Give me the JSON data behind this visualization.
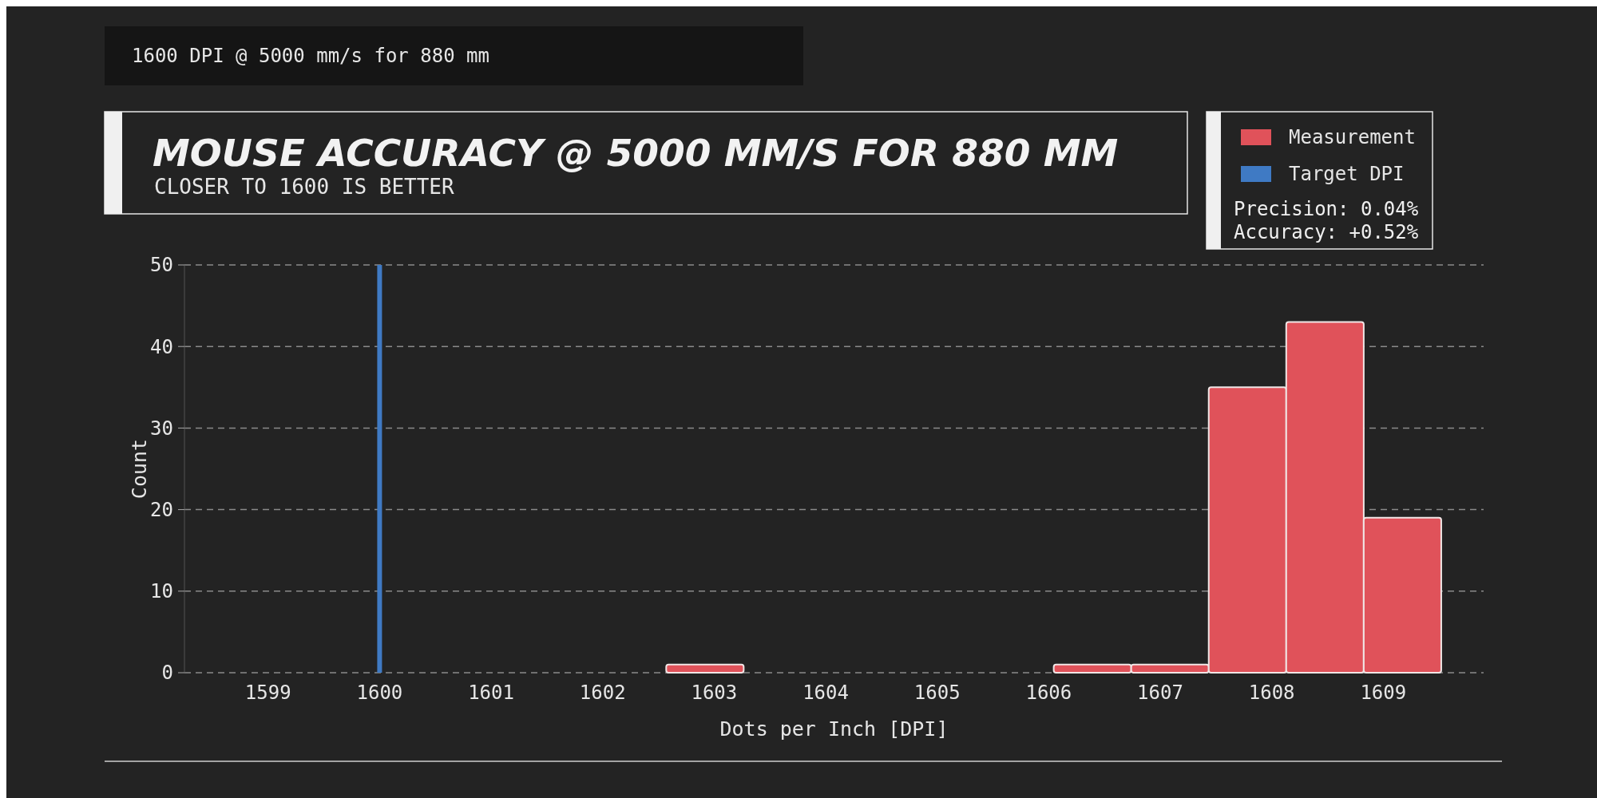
{
  "chart_data": {
    "type": "histogram",
    "title": "MOUSE ACCURACY @ 5000 MM/S FOR 880 MM",
    "subtitle": "CLOSER TO 1600 IS BETTER",
    "xlabel": "Dots per Inch [DPI]",
    "ylabel": "Count",
    "bins": [
      1602.57,
      1603.265,
      1603.96,
      1604.655,
      1605.35,
      1606.045,
      1606.74,
      1607.435,
      1608.13,
      1608.825,
      1609.52
    ],
    "series": [
      {
        "name": "Measurement",
        "color": "#e0525a",
        "values": [
          1,
          0,
          0,
          0,
          0,
          1,
          1,
          35,
          43,
          19
        ]
      }
    ],
    "xlim": [
      1598.25,
      1609.9
    ],
    "xticks": [
      1599,
      1600,
      1601,
      1602,
      1603,
      1604,
      1605,
      1606,
      1607,
      1608,
      1609
    ],
    "ylim": [
      0,
      50
    ],
    "yticks": [
      0,
      10,
      20,
      30,
      40,
      50
    ],
    "grid": "y",
    "legend": "top right",
    "ref_lines": [
      {
        "axis": "x",
        "value": 1600,
        "label": "Target DPI",
        "color": "#3f7ac4"
      }
    ],
    "annotations": [
      "1600 DPI @ 5000 mm/s for 880 mm",
      "Precision: 0.04%",
      "Accuracy: +0.52%"
    ]
  }
}
